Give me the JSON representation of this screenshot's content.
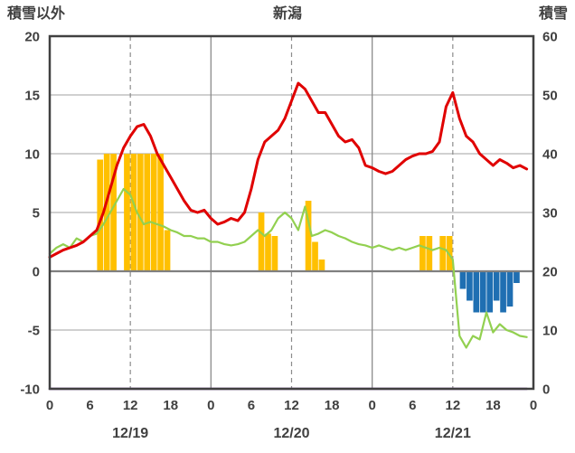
{
  "header": {
    "left_axis_title": "積雪以外",
    "title": "新潟",
    "right_axis_title": "積雪"
  },
  "colors": {
    "temperature_line": "#e00000",
    "secondary_line": "#92d050",
    "precip_bars": "#ffc000",
    "negative_bars": "#1f6fb2",
    "snow_depth_line": "#7030a0",
    "grid": "#b3b3b3",
    "frame": "#404040",
    "zero_line": "#7f7f7f",
    "text": "#404040"
  },
  "chart_data": {
    "type": "line",
    "title": "新潟",
    "left_axis": {
      "label": "積雪以外",
      "min": -10,
      "max": 20,
      "ticks": [
        20,
        15,
        10,
        5,
        0,
        -5,
        -10
      ]
    },
    "right_axis": {
      "label": "積雪",
      "min": 0,
      "max": 60,
      "ticks": [
        60,
        50,
        40,
        30,
        20,
        10,
        0
      ]
    },
    "x_axis": {
      "days": [
        "12/19",
        "12/20",
        "12/21"
      ],
      "hour_ticks": [
        0,
        6,
        12,
        18
      ],
      "end_tick_label": "0",
      "hours_per_day": 24,
      "total_hours": 72
    },
    "grid": {
      "horizontal_step": 5,
      "v_solid_hours": [
        24,
        48
      ],
      "v_dashed_hours": [
        12,
        36,
        60
      ]
    },
    "series": [
      {
        "name": "precip-bars",
        "type": "bar",
        "axis": "left",
        "color": "#ffc000",
        "values": [
          null,
          null,
          null,
          null,
          null,
          null,
          null,
          9.5,
          10,
          10,
          null,
          10,
          10,
          10,
          10,
          10,
          10,
          3.5,
          null,
          null,
          null,
          null,
          null,
          null,
          null,
          null,
          null,
          null,
          null,
          null,
          null,
          5,
          3.2,
          3,
          null,
          null,
          null,
          null,
          6,
          2.5,
          1,
          null,
          null,
          null,
          null,
          null,
          null,
          null,
          null,
          null,
          null,
          null,
          null,
          null,
          null,
          3,
          3,
          null,
          3,
          3,
          null,
          null,
          null,
          null,
          null,
          null,
          null,
          null,
          null,
          null,
          null,
          null
        ]
      },
      {
        "name": "negative-bars",
        "type": "bar",
        "axis": "left",
        "color": "#1f6fb2",
        "values": [
          null,
          null,
          null,
          null,
          null,
          null,
          null,
          null,
          null,
          null,
          null,
          null,
          null,
          null,
          null,
          null,
          null,
          null,
          null,
          null,
          null,
          null,
          null,
          null,
          null,
          null,
          null,
          null,
          null,
          null,
          null,
          null,
          null,
          null,
          null,
          null,
          null,
          null,
          null,
          null,
          null,
          null,
          null,
          null,
          null,
          null,
          null,
          null,
          null,
          null,
          null,
          null,
          null,
          null,
          null,
          null,
          null,
          null,
          null,
          null,
          null,
          -1.5,
          -2.5,
          -3.5,
          -3.5,
          -3.5,
          -2.5,
          -3.5,
          -3,
          -1,
          null,
          null
        ]
      },
      {
        "name": "secondary-line",
        "type": "line",
        "axis": "left",
        "color": "#92d050",
        "line_width": 2.2,
        "values": [
          1.5,
          2.0,
          2.3,
          2.0,
          2.8,
          2.5,
          3.0,
          3.2,
          4.0,
          5.0,
          6.0,
          7.0,
          6.5,
          5.0,
          4.0,
          4.2,
          4.0,
          3.8,
          3.5,
          3.3,
          3.0,
          3.0,
          2.8,
          2.8,
          2.5,
          2.5,
          2.3,
          2.2,
          2.3,
          2.5,
          3.0,
          3.5,
          3.0,
          3.5,
          4.5,
          5.0,
          4.5,
          3.5,
          5.5,
          3.0,
          3.2,
          3.5,
          3.3,
          3.0,
          2.8,
          2.5,
          2.3,
          2.2,
          2.0,
          2.2,
          2.0,
          1.8,
          2.0,
          1.8,
          2.0,
          2.2,
          2.0,
          1.8,
          2.0,
          1.8,
          1.0,
          -5.5,
          -6.5,
          -5.5,
          -5.8,
          -3.5,
          -5.2,
          -4.5,
          -5.0,
          -5.2,
          -5.5,
          -5.6
        ]
      },
      {
        "name": "temperature-line",
        "type": "line",
        "axis": "left",
        "color": "#e00000",
        "line_width": 3,
        "values": [
          1.2,
          1.5,
          1.8,
          2.0,
          2.2,
          2.5,
          3.0,
          3.5,
          5.0,
          7.0,
          9.0,
          10.5,
          11.5,
          12.3,
          12.5,
          11.5,
          10.0,
          9.0,
          8.0,
          7.0,
          6.0,
          5.2,
          5.0,
          5.2,
          4.5,
          4.0,
          4.2,
          4.5,
          4.3,
          5.0,
          7.0,
          9.5,
          11.0,
          11.5,
          12.0,
          13.0,
          14.5,
          16.0,
          15.5,
          14.5,
          13.5,
          13.5,
          12.5,
          11.5,
          11.0,
          11.2,
          10.5,
          9.0,
          8.8,
          8.5,
          8.3,
          8.5,
          9.0,
          9.5,
          9.8,
          10.0,
          10.0,
          10.2,
          11.0,
          14.0,
          15.2,
          13.0,
          11.5,
          11.0,
          10.0,
          9.5,
          9.0,
          9.5,
          9.2,
          8.8,
          9.0,
          8.7
        ]
      },
      {
        "name": "snow-depth-line",
        "type": "line",
        "axis": "right",
        "color": "#7030a0",
        "line_width": 2.5,
        "constant": 0
      }
    ]
  }
}
